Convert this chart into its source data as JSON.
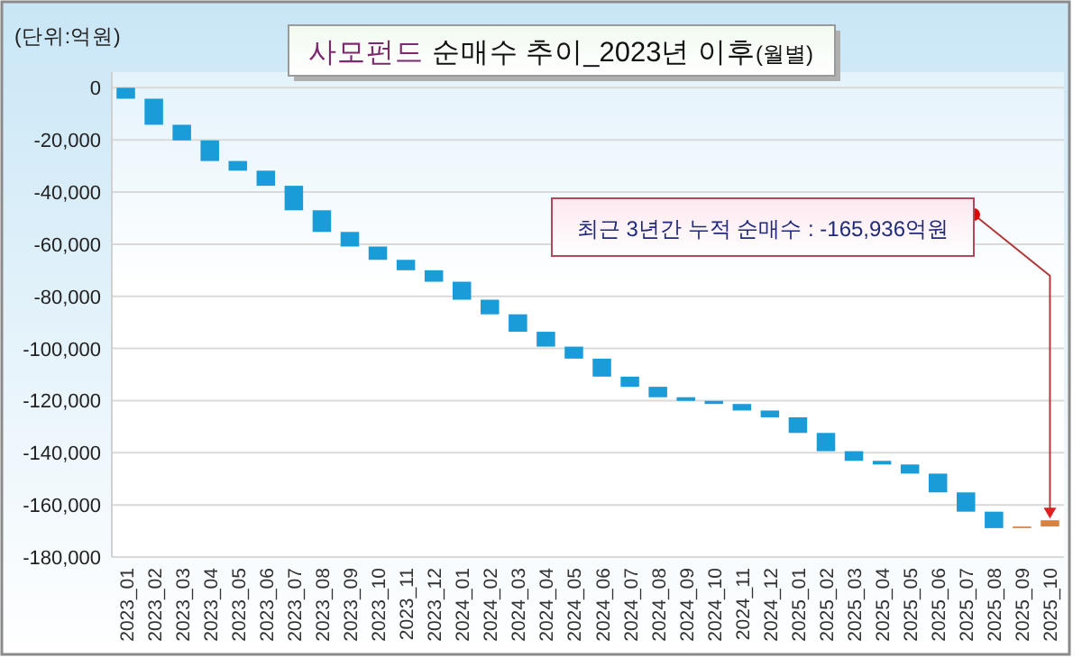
{
  "chart_data": {
    "type": "bar",
    "title": "사모펀드 순매수 추이_2023년 이후(월별)",
    "annotations": [
      "(단위:억원)",
      {
        "text": "최근 3년간 누적 순매수 : -165,936억원",
        "x": "2025_10",
        "y": -165936
      }
    ],
    "categories": [
      "2023_01",
      "2023_02",
      "2023_03",
      "2023_04",
      "2023_05",
      "2023_06",
      "2023_07",
      "2023_08",
      "2023_09",
      "2023_10",
      "2023_11",
      "2023_12",
      "2024_01",
      "2024_02",
      "2024_03",
      "2024_04",
      "2024_05",
      "2024_06",
      "2024_07",
      "2024_08",
      "2024_09",
      "2024_10",
      "2024_11",
      "2024_12",
      "2025_01",
      "2025_02",
      "2025_03",
      "2025_04",
      "2025_05",
      "2025_06",
      "2025_07",
      "2025_08",
      "2025_09",
      "2025_10"
    ],
    "values": [
      -4200,
      -10000,
      -6000,
      -7900,
      -3700,
      -5800,
      -9400,
      -8300,
      -5600,
      -5100,
      -4000,
      -4400,
      -6900,
      -5600,
      -6700,
      -5700,
      -4600,
      -6900,
      -3900,
      -4000,
      -1400,
      -1200,
      -2500,
      -2600,
      -6000,
      -7000,
      -3700,
      -1400,
      -3500,
      -7200,
      -7400,
      -6300,
      600,
      2400
    ],
    "base": [
      0,
      -4200,
      -14200,
      -20200,
      -28100,
      -31800,
      -37600,
      -47000,
      -55300,
      -60900,
      -66000,
      -70000,
      -74400,
      -81300,
      -86900,
      -93600,
      -99300,
      -103900,
      -110800,
      -114700,
      -118700,
      -120100,
      -121300,
      -123800,
      -126400,
      -132400,
      -139400,
      -143100,
      -144500,
      -148000,
      -155200,
      -162600,
      -168900,
      -168300
    ],
    "colors": [
      "#1a9cd8",
      "#1a9cd8",
      "#1a9cd8",
      "#1a9cd8",
      "#1a9cd8",
      "#1a9cd8",
      "#1a9cd8",
      "#1a9cd8",
      "#1a9cd8",
      "#1a9cd8",
      "#1a9cd8",
      "#1a9cd8",
      "#1a9cd8",
      "#1a9cd8",
      "#1a9cd8",
      "#1a9cd8",
      "#1a9cd8",
      "#1a9cd8",
      "#1a9cd8",
      "#1a9cd8",
      "#1a9cd8",
      "#1a9cd8",
      "#1a9cd8",
      "#1a9cd8",
      "#1a9cd8",
      "#1a9cd8",
      "#1a9cd8",
      "#1a9cd8",
      "#1a9cd8",
      "#1a9cd8",
      "#1a9cd8",
      "#1a9cd8",
      "#d9813f",
      "#d9813f"
    ],
    "ylim": [
      -180000,
      6000
    ],
    "yticks": [
      0,
      {
        "value": -20000,
        "label": "-20,000"
      },
      {
        "value": -40000,
        "label": "-40,000"
      },
      {
        "value": -60000,
        "label": "-60,000"
      },
      {
        "value": -80000,
        "label": "-80,000"
      },
      {
        "value": -100000,
        "label": "-100,000"
      },
      {
        "value": -120000,
        "label": "-120,000"
      },
      {
        "value": -140000,
        "label": "-140,000"
      },
      {
        "value": -160000,
        "label": "-160,000"
      },
      {
        "value": -180000,
        "label": "-180,000"
      }
    ],
    "grid": "y"
  }
}
